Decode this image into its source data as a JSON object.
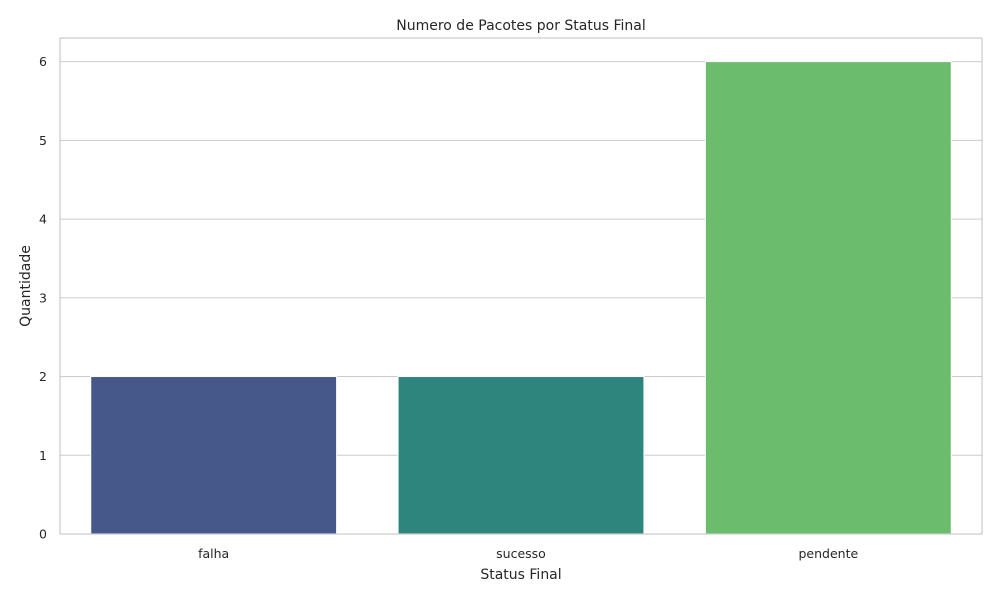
{
  "chart_data": {
    "type": "bar",
    "title": "Numero de Pacotes por Status Final",
    "xlabel": "Status Final",
    "ylabel": "Quantidade",
    "categories": [
      "falha",
      "sucesso",
      "pendente"
    ],
    "values": [
      2,
      2,
      6
    ],
    "colors": [
      "#46578a",
      "#2e857d",
      "#6bbd6d"
    ],
    "ylim": [
      0,
      6.3
    ],
    "yticks": [
      0,
      1,
      2,
      3,
      4,
      5,
      6
    ],
    "grid": true,
    "legend": "none"
  }
}
